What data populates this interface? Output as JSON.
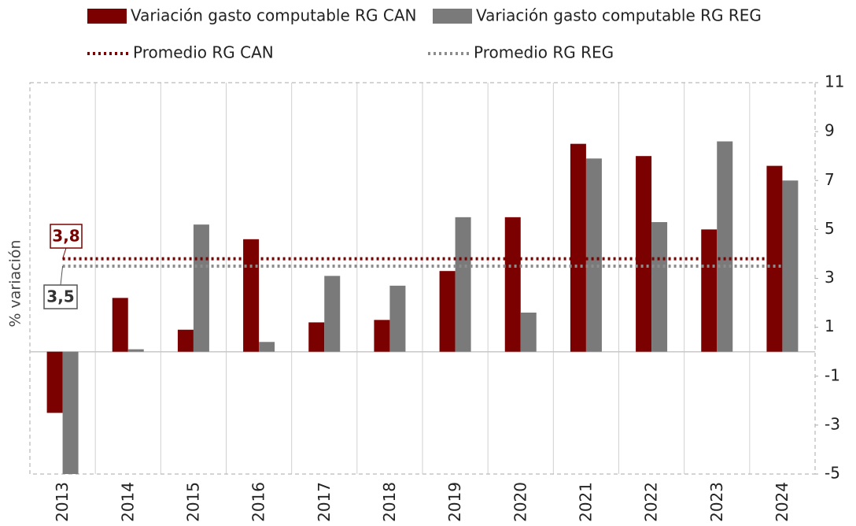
{
  "chart_data": {
    "type": "bar",
    "y_axis_label": "% variación",
    "categories": [
      "2013",
      "2014",
      "2015",
      "2016",
      "2017",
      "2018",
      "2019",
      "2020",
      "2021",
      "2022",
      "2023",
      "2024"
    ],
    "series": [
      {
        "name": "Variación gasto computable RG CAN",
        "color": "#7b0000",
        "values": [
          -2.5,
          2.2,
          0.9,
          4.6,
          1.2,
          1.3,
          3.3,
          5.5,
          8.5,
          8.0,
          5.0,
          7.6
        ]
      },
      {
        "name": "Variación gasto computable RG REG",
        "color": "#7a7a7a",
        "values": [
          -5,
          0.1,
          5.2,
          0.4,
          3.1,
          2.7,
          5.5,
          1.6,
          7.9,
          5.3,
          8.6,
          7.0
        ]
      }
    ],
    "averages": [
      {
        "name": "Promedio RG CAN",
        "color": "#7b0000",
        "value": 3.8,
        "value_label": "3,8"
      },
      {
        "name": "Promedio RG REG",
        "color": "#8c8c8c",
        "value": 3.5,
        "value_label": "3,5"
      }
    ],
    "ylim": [
      -5,
      11
    ],
    "yticks": [
      -5,
      -3,
      -1,
      1,
      3,
      5,
      7,
      9,
      11
    ],
    "grid": true
  }
}
